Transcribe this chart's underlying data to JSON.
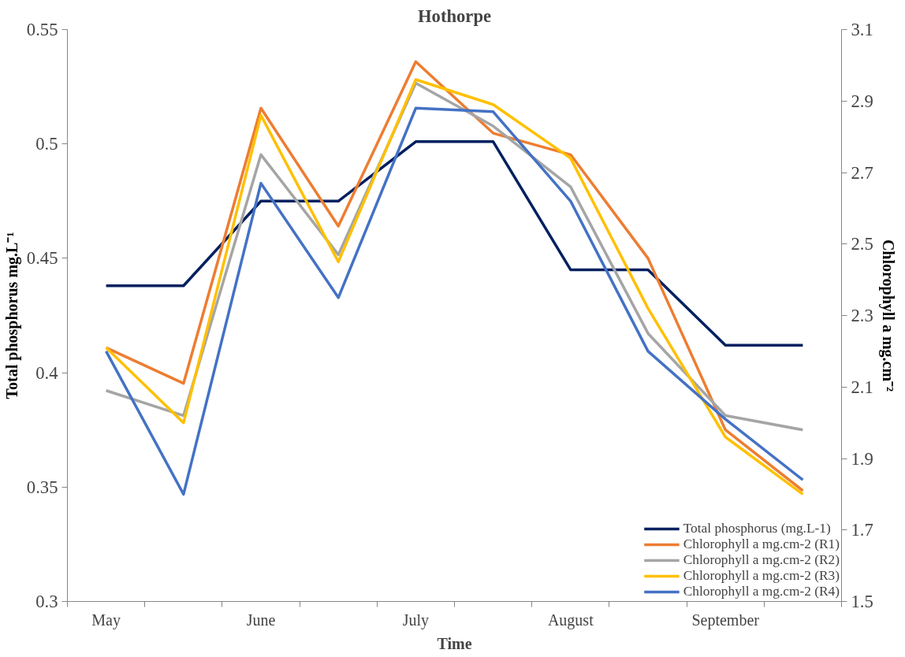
{
  "chart_data": {
    "type": "line",
    "title": "Hothorpe",
    "xlabel": "Time",
    "ylabel": "Total phosphorus mg.L⁻¹",
    "y2label": "Chlorophyll a mg.cm⁻²",
    "categories": [
      "May",
      null,
      "June",
      null,
      "July",
      null,
      "August",
      null,
      "September",
      null
    ],
    "ylim": [
      0.3,
      0.55
    ],
    "yticks": [
      0.3,
      0.35,
      0.4,
      0.45,
      0.5,
      0.55
    ],
    "y2lim": [
      1.5,
      3.1
    ],
    "y2ticks": [
      1.5,
      1.7,
      1.9,
      2.1,
      2.3,
      2.5,
      2.7,
      2.9,
      3.1
    ],
    "grid": false,
    "legend": "bottom right",
    "marker": "none",
    "line_style": "solid",
    "series": [
      {
        "name": "Total phosphorus (mg.L-1)",
        "color": "#002060",
        "values": [
          0.438,
          0.438,
          0.475,
          0.475,
          0.501,
          0.501,
          0.445,
          0.445,
          0.412,
          0.412
        ]
      },
      {
        "name": "Chlorophyll a mg.cm-2 (R1)",
        "color": "#ed7d31",
        "axis": "y2",
        "values": [
          2.21,
          2.11,
          2.88,
          2.55,
          3.01,
          2.81,
          2.75,
          2.46,
          1.98,
          1.81
        ]
      },
      {
        "name": "Chlorophyll a mg.cm-2 (R2)",
        "color": "#a5a5a5",
        "axis": "y2",
        "values": [
          2.09,
          2.02,
          2.75,
          2.47,
          2.95,
          2.83,
          2.66,
          2.25,
          2.02,
          1.98
        ]
      },
      {
        "name": "Chlorophyll a mg.cm-2 (R3)",
        "color": "#ffc000",
        "axis": "y2",
        "values": [
          2.21,
          2.0,
          2.86,
          2.45,
          2.96,
          2.89,
          2.74,
          2.32,
          1.96,
          1.8
        ]
      },
      {
        "name": "Chlorophyll a mg.cm-2 (R4)",
        "color": "#4472c4",
        "axis": "y2",
        "values": [
          2.2,
          1.8,
          2.67,
          2.35,
          2.88,
          2.87,
          2.62,
          2.2,
          2.01,
          1.84
        ]
      }
    ]
  }
}
